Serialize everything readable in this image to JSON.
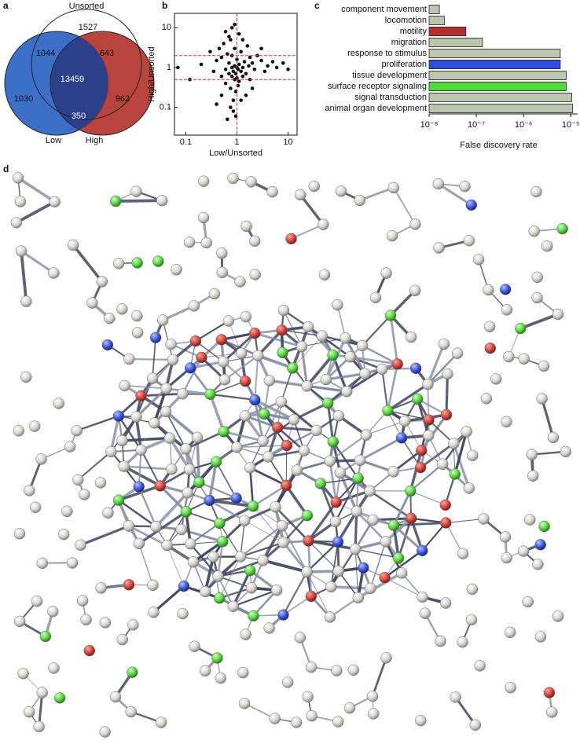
{
  "chart_data": [
    {
      "type": "venn",
      "panel": "a",
      "sets": [
        "Unsorted",
        "Low",
        "High"
      ],
      "set_colors": [
        "none",
        "#3c6fc8",
        "#b3342c"
      ],
      "values": [
        1527,
        1044,
        643,
        13459,
        1030,
        962,
        350
      ]
    },
    {
      "type": "scatter",
      "panel": "b",
      "xlabel": "Low/Unsorted",
      "ylabel": "High/Unsorted",
      "xscale": "log",
      "yscale": "log",
      "xlim": [
        0.06,
        15
      ],
      "ylim": [
        0.02,
        23
      ],
      "xticks": [
        0.1,
        1,
        10
      ],
      "yticks": [
        0.1,
        1,
        10
      ],
      "color": "#111111",
      "ref_color": "#d9322f",
      "ref_lines": {
        "x": [
          1
        ],
        "y": [
          2,
          0.5
        ]
      },
      "x": [
        0.07,
        0.12,
        0.2,
        0.3,
        0.35,
        0.4,
        0.45,
        0.5,
        0.5,
        0.55,
        0.6,
        0.6,
        0.65,
        0.7,
        0.7,
        0.75,
        0.75,
        0.8,
        0.8,
        0.8,
        0.85,
        0.85,
        0.9,
        0.9,
        0.9,
        0.95,
        0.95,
        1,
        1,
        1,
        1.05,
        1.05,
        1.1,
        1.1,
        1.2,
        1.2,
        1.3,
        1.3,
        1.4,
        1.5,
        1.6,
        1.7,
        1.8,
        2,
        2.2,
        2.5,
        3,
        3.5,
        4,
        5,
        6,
        8,
        10,
        0.6,
        0.7,
        0.8,
        0.9,
        1.1,
        1.3,
        0.5,
        0.4,
        1.5,
        2,
        0.75,
        0.85,
        1.2,
        0.95,
        0.65,
        1.8,
        3
      ],
      "y": [
        1,
        0.5,
        1.2,
        2.5,
        0.8,
        1.5,
        3,
        0.6,
        1.8,
        4,
        0.9,
        0.4,
        2.2,
        0.7,
        1.3,
        5,
        0.3,
        1,
        0.6,
        2,
        0.8,
        0.15,
        1.1,
        0.5,
        3,
        0.7,
        0.25,
        1,
        0.55,
        1.6,
        0.9,
        0.35,
        1.2,
        0.45,
        0.8,
        2.5,
        1,
        0.6,
        1.4,
        0.7,
        3.5,
        1.1,
        0.5,
        1.3,
        0.9,
        2,
        1.5,
        0.8,
        1.1,
        1.4,
        1,
        1.3,
        0.9,
        8,
        6,
        10,
        12,
        7,
        5,
        0.2,
        0.12,
        0.2,
        0.3,
        0.1,
        0.08,
        0.15,
        0.06,
        0.05,
        1.8,
        3
      ]
    },
    {
      "type": "barh",
      "panel": "c",
      "xlabel": "False discovery rate",
      "xscale": "log",
      "xlim": [
        1e-08,
        1.4e-05
      ],
      "xticks": [
        {
          "value": 1e-08,
          "label": "10⁻⁸"
        },
        {
          "value": 1e-07,
          "label": "10⁻⁷"
        },
        {
          "value": 1e-06,
          "label": "10⁻⁶"
        },
        {
          "value": 1e-05,
          "label": "10⁻⁵"
        }
      ],
      "categories": [
        "component movement",
        "locomotion",
        "motility",
        "migration",
        "response to stimulus",
        "proliferation",
        "tissue development",
        "surface receptor signaling",
        "signal transduction",
        "animal organ development"
      ],
      "values": [
        1.65e-08,
        2.1e-08,
        6e-08,
        1.35e-07,
        6e-06,
        6e-06,
        8e-06,
        8e-06,
        1.05e-05,
        1.1e-05
      ],
      "colors": [
        "#bac6b0",
        "#bac6b0",
        "#b3322f",
        "#bac6b0",
        "#bac6b0",
        "#2e4fdc",
        "#bac6b0",
        "#4fdc3a",
        "#bac6b0",
        "#bac6b0"
      ]
    }
  ],
  "network": {
    "panel": "d"
  }
}
